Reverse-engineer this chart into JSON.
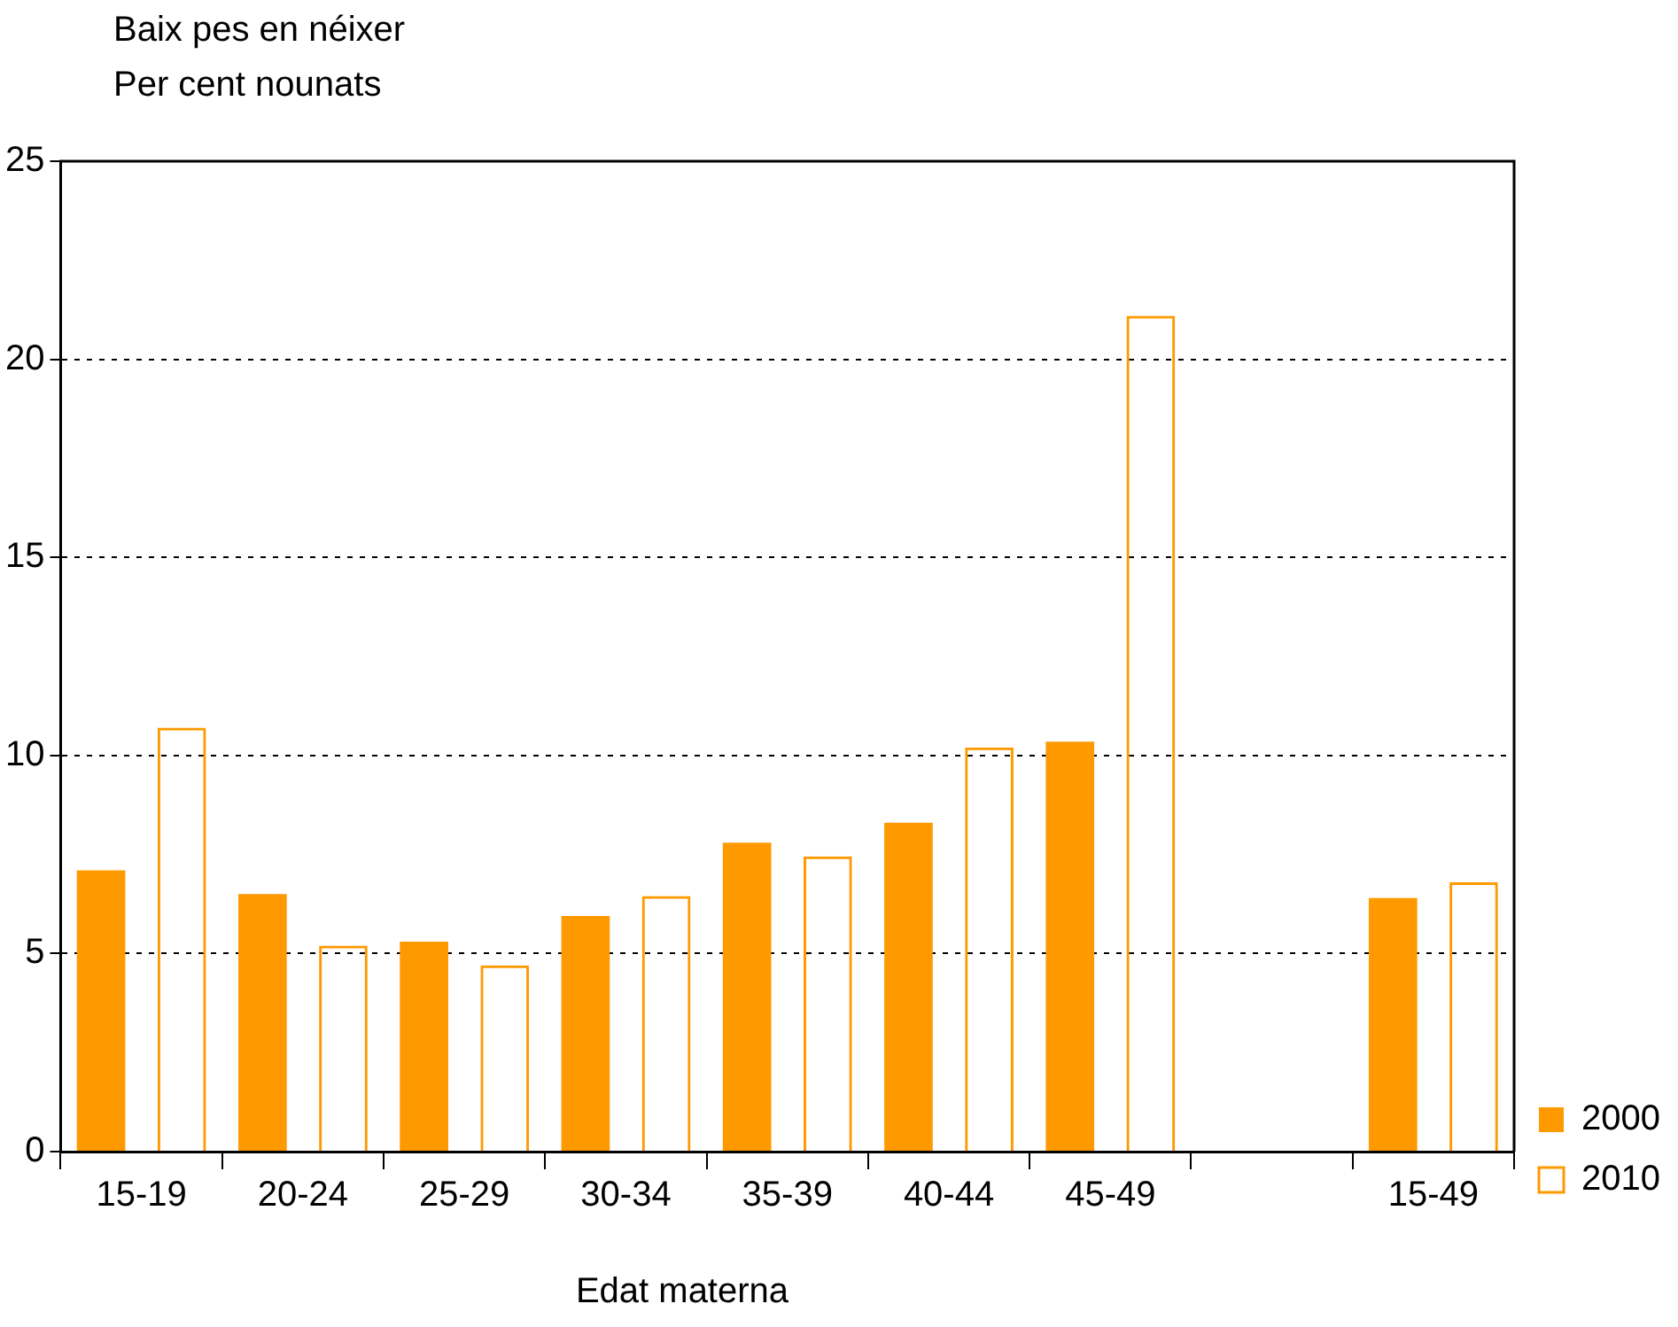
{
  "chart_data": {
    "type": "bar",
    "title": "Baix pes en néixer",
    "ylabel": "Per cent nounats",
    "xlabel": "Edat materna",
    "categories": [
      "15-19",
      "20-24",
      "25-29",
      "30-34",
      "35-39",
      "40-44",
      "45-49",
      null,
      "15-49"
    ],
    "series": [
      {
        "name": "2000",
        "color": "#ff9900",
        "values": [
          7.1,
          6.5,
          5.3,
          5.95,
          7.8,
          8.3,
          10.35,
          null,
          6.4
        ]
      },
      {
        "name": "2010",
        "color": "#ff9900",
        "values": [
          10.7,
          5.2,
          4.7,
          6.45,
          7.45,
          10.2,
          21.1,
          null,
          6.8
        ]
      }
    ],
    "ylim": [
      0,
      25
    ],
    "yticks": [
      0,
      5,
      10,
      15,
      20,
      25
    ],
    "grid": "y",
    "legend": "right"
  }
}
